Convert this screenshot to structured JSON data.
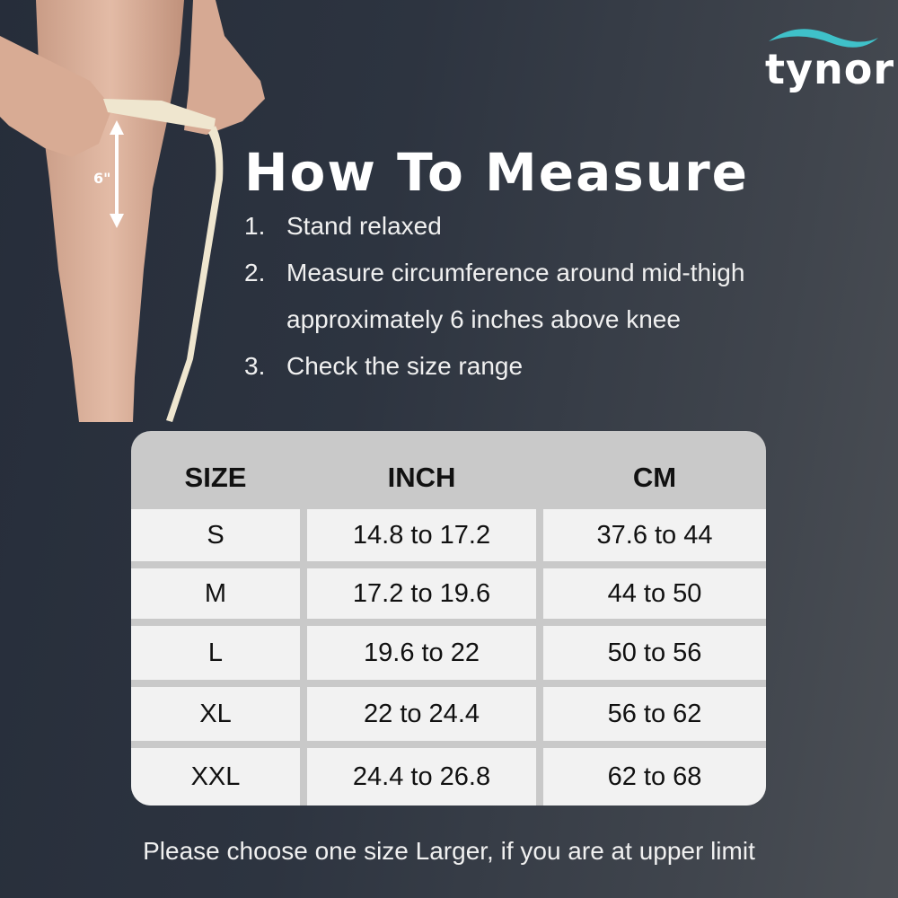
{
  "brand": {
    "logo_text": "tynor",
    "accent_color": "#3fc1c9"
  },
  "illustration": {
    "measure_label": "6\""
  },
  "title": "How To Measure",
  "steps": [
    {
      "num": "1.",
      "lines": [
        "Stand relaxed"
      ]
    },
    {
      "num": "2.",
      "lines": [
        "Measure circumference around mid-thigh",
        "approximately 6 inches above knee"
      ]
    },
    {
      "num": "3.",
      "lines": [
        "Check the size range"
      ]
    }
  ],
  "size_table": {
    "headers": [
      "SIZE",
      "INCH",
      "CM"
    ],
    "rows": [
      [
        "S",
        "14.8 to 17.2",
        "37.6 to 44"
      ],
      [
        "M",
        "17.2 to 19.6",
        "44 to 50"
      ],
      [
        "L",
        "19.6 to 22",
        "50 to 56"
      ],
      [
        "XL",
        "22 to 24.4",
        "56 to 62"
      ],
      [
        "XXL",
        "24.4 to 26.8",
        "62 to 68"
      ]
    ]
  },
  "footer": "Please choose one size Larger, if you are at upper limit"
}
